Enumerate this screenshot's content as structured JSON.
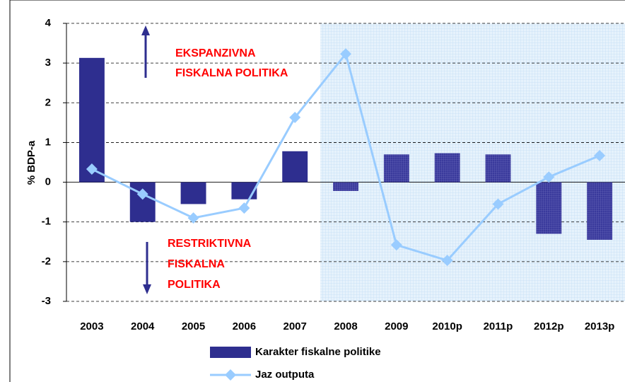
{
  "chart_data": {
    "type": "bar_line",
    "y_label": "% BDP-a",
    "categories": [
      "2003",
      "2004",
      "2005",
      "2006",
      "2007",
      "2008",
      "2009",
      "2010p",
      "2011p",
      "2012p",
      "2013p"
    ],
    "series": [
      {
        "name": "Karakter fiskalne politike",
        "type": "bar",
        "color": "#2e2e8f",
        "values": [
          3.13,
          -1.0,
          -0.55,
          -0.43,
          0.78,
          -0.22,
          0.7,
          0.73,
          0.7,
          -1.3,
          -1.45
        ]
      },
      {
        "name": "Jaz outputa",
        "type": "line",
        "color": "#99ccff",
        "values": [
          0.33,
          -0.3,
          -0.9,
          -0.65,
          1.63,
          3.23,
          -1.58,
          -1.97,
          -0.55,
          0.13,
          0.67
        ]
      }
    ],
    "ylim": [
      -3,
      4
    ],
    "yticks": [
      -3,
      -2,
      -1,
      0,
      1,
      2,
      3,
      4
    ],
    "grid": true,
    "annotations": [
      "EKSPANZIVNA",
      "FISKALNA POLITIKA",
      "RESTRIKTIVNA",
      "FISKALNA",
      "POLITIKA"
    ]
  }
}
